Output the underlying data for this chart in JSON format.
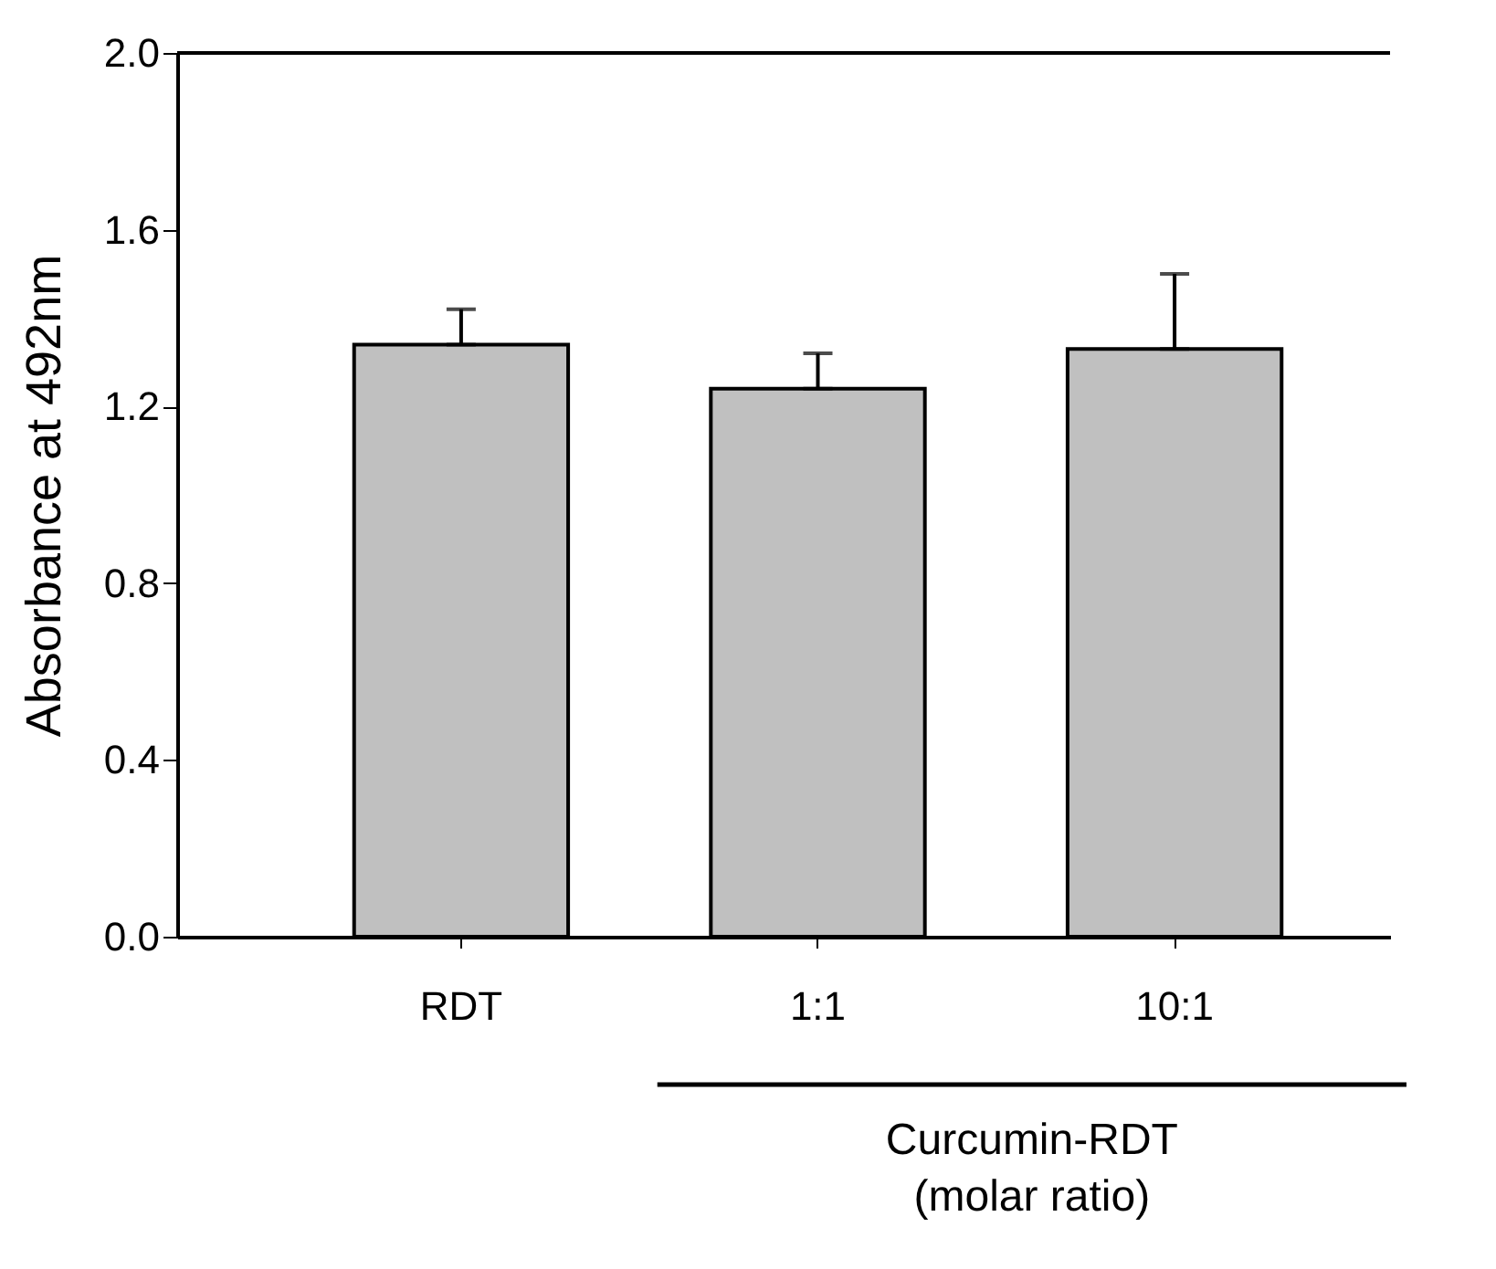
{
  "chart_data": {
    "type": "bar",
    "ylabel": "Absorbance at 492nm",
    "categories": [
      "RDT",
      "1:1",
      "10:1"
    ],
    "values": [
      1.34,
      1.24,
      1.33
    ],
    "errors": [
      [
        1.34,
        1.42
      ],
      [
        1.24,
        1.32
      ],
      [
        1.33,
        1.5
      ]
    ],
    "color": "#c0c0c0",
    "ylim": [
      0,
      2.0
    ],
    "yticks": [
      {
        "value": 0,
        "label": "0.0"
      },
      0.4,
      0.8,
      1.2,
      1.6,
      {
        "value": 2.0,
        "label": "2.0"
      }
    ],
    "grid": false,
    "annotations": [
      "Curcumin-RDT",
      "(molar ratio)"
    ]
  }
}
